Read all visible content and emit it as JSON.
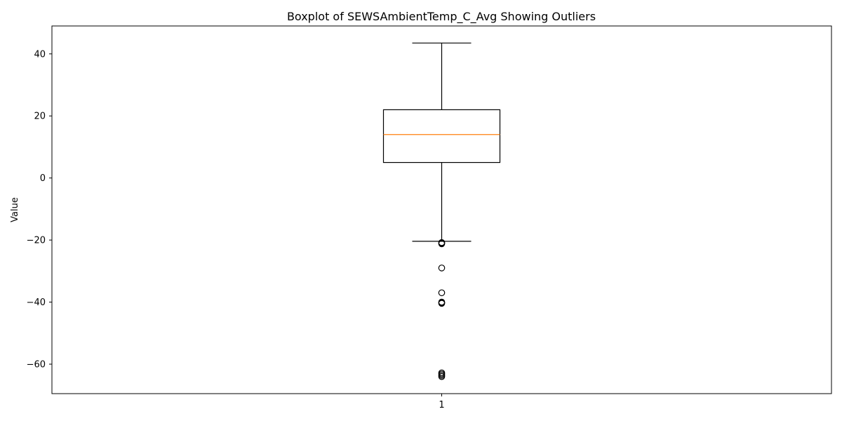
{
  "chart_data": {
    "type": "boxplot",
    "title": "Boxplot of SEWSAmbientTemp_C_Avg Showing Outliers",
    "xlabel": "",
    "ylabel": "Value",
    "categories": [
      "1"
    ],
    "ylim": [
      -69.5,
      49
    ],
    "yticks": [
      -60,
      -40,
      -20,
      0,
      20,
      40
    ],
    "ytick_labels": [
      "−60",
      "−40",
      "−20",
      "0",
      "20",
      "40"
    ],
    "grid": false,
    "boxes": [
      {
        "category": "1",
        "whisker_low": -20.4,
        "q1": 5.0,
        "median": 14.0,
        "q3": 22.0,
        "whisker_high": 43.5,
        "outliers": [
          -20.8,
          -21.0,
          -21.2,
          -29.0,
          -37.0,
          -40.0,
          -40.2,
          -40.4,
          -62.8,
          -63.2,
          -63.6,
          -64.0
        ]
      }
    ],
    "colors": {
      "box": "#000000",
      "median": "#ff7f0e",
      "outlier": "#000000"
    }
  }
}
